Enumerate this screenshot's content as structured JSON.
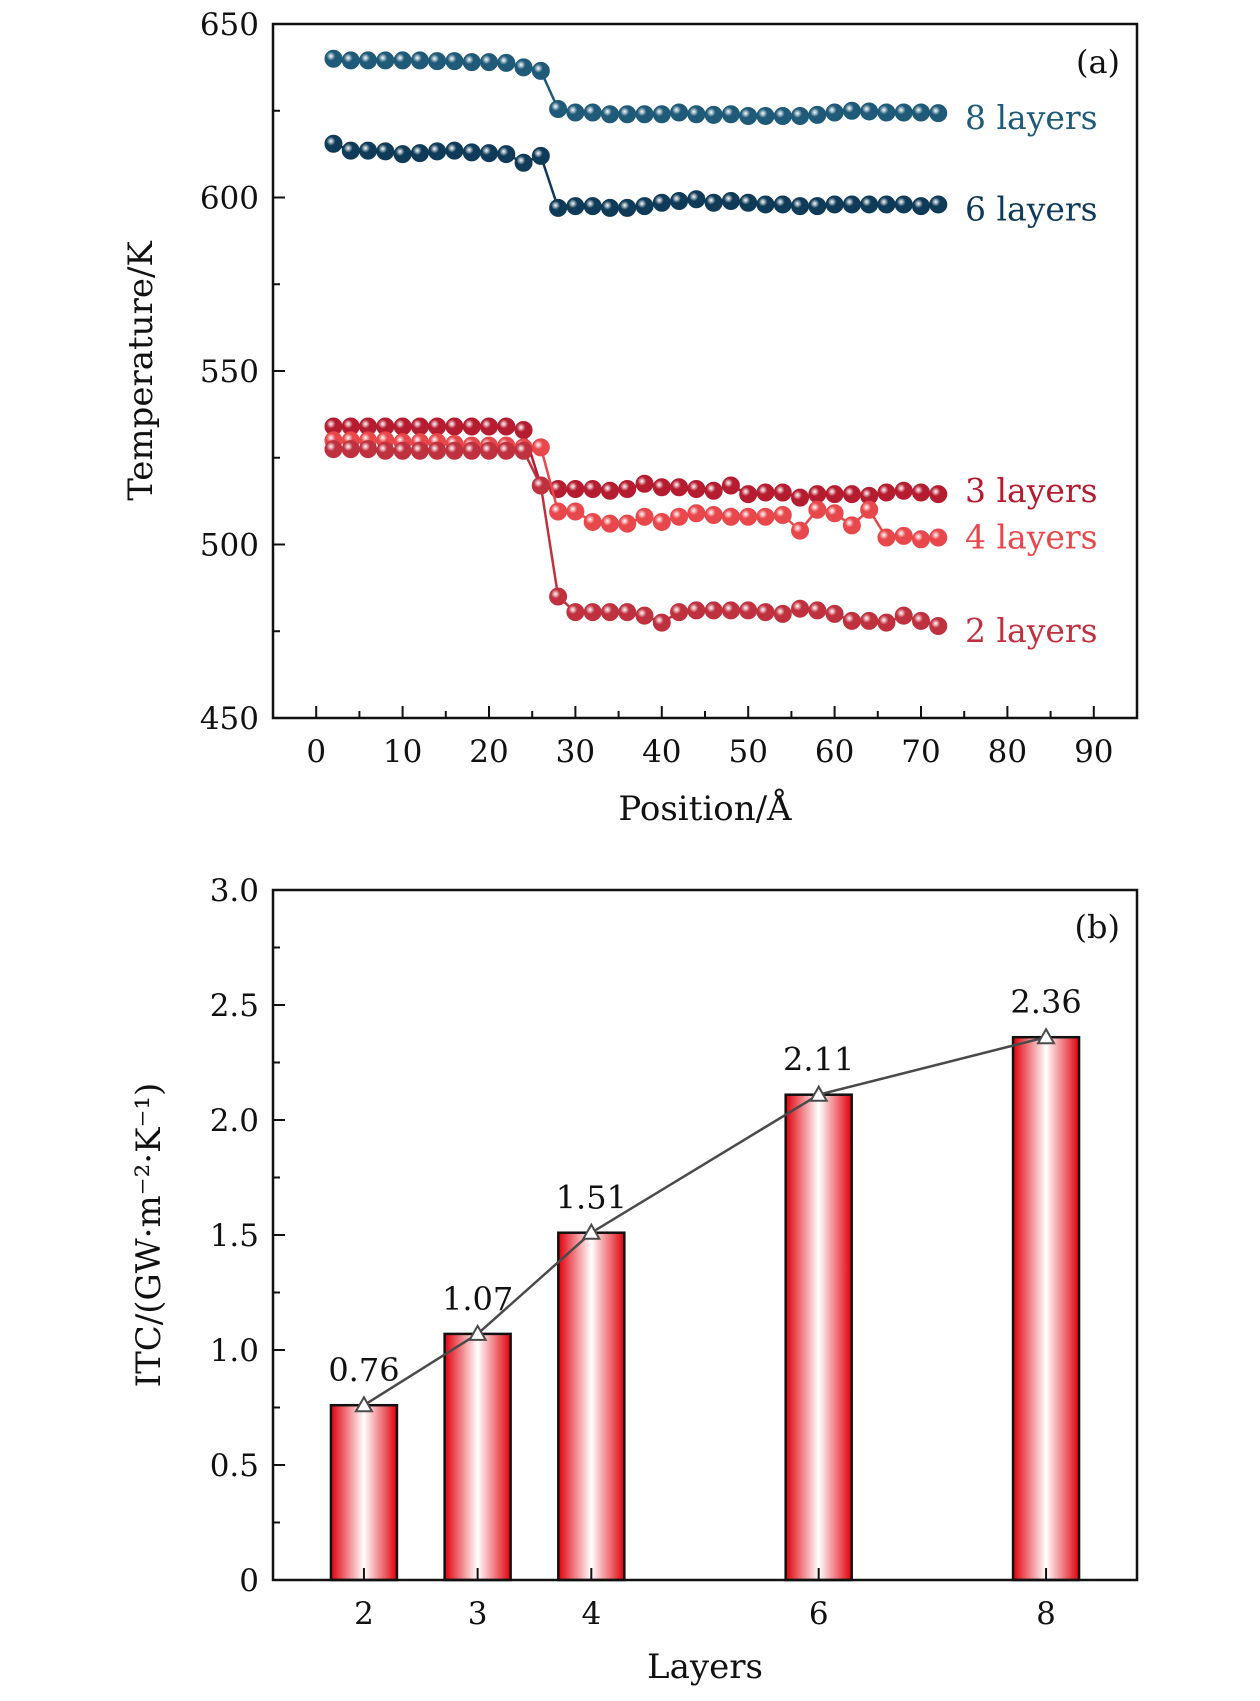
{
  "figure": {
    "colors": {
      "layers8": "#1f5a78",
      "layers6": "#0f3b58",
      "layers3": "#b51c30",
      "layers4": "#e8474b",
      "layers2": "#c0313f",
      "bar_edge": "#e0000b",
      "bar_center": "#ffffff",
      "line": "#4a4a4a"
    }
  },
  "chart_data": [
    {
      "panel": "a",
      "panel_label": "(a)",
      "type": "line",
      "xlabel": "Position/Å",
      "ylabel": "Temperature/K",
      "xlim": [
        -5,
        95
      ],
      "ylim": [
        450,
        650
      ],
      "xticks": [
        0,
        10,
        20,
        30,
        40,
        50,
        60,
        70,
        80,
        90
      ],
      "yticks": [
        450,
        500,
        550,
        600,
        650
      ],
      "x": [
        2,
        4,
        6,
        8,
        10,
        12,
        14,
        16,
        18,
        20,
        22,
        24,
        26,
        28,
        30,
        32,
        34,
        36,
        38,
        40,
        42,
        44,
        46,
        48,
        50,
        52,
        54,
        56,
        58,
        60,
        62,
        64,
        66,
        68,
        70,
        72
      ],
      "series": [
        {
          "name": "8 layers",
          "color_key": "layers8",
          "values": [
            640,
            639.5,
            639.5,
            639.5,
            639.5,
            639.5,
            639.3,
            639.3,
            639,
            639,
            638.8,
            637.5,
            636.5,
            625.5,
            624.5,
            624.5,
            624,
            624,
            624,
            624,
            624.5,
            624,
            623.8,
            624,
            623.5,
            623.5,
            623.5,
            623.5,
            623.8,
            624.5,
            625,
            624.8,
            624.5,
            624.5,
            624.5,
            624.3
          ]
        },
        {
          "name": "6 layers",
          "color_key": "layers6",
          "values": [
            615.5,
            613.5,
            613.5,
            613.3,
            612.5,
            612.8,
            613.3,
            613.5,
            613,
            612.8,
            612.5,
            610,
            612,
            597,
            597.5,
            597.5,
            597,
            597,
            597.5,
            598.5,
            599,
            599.5,
            598.5,
            599,
            598.5,
            598,
            598,
            597.5,
            597.5,
            598,
            598,
            598,
            598,
            598,
            597.5,
            598
          ]
        },
        {
          "name": "3 layers",
          "color_key": "layers3",
          "values": [
            534,
            534,
            534,
            534,
            534,
            534,
            534,
            534,
            534,
            534,
            534,
            533,
            517,
            516,
            516,
            516,
            515.5,
            516,
            517.5,
            516.5,
            516.5,
            516,
            515.5,
            517,
            514.5,
            515,
            515,
            513.5,
            514.5,
            514.5,
            514.5,
            514,
            515,
            515.5,
            515,
            514.5
          ]
        },
        {
          "name": "4 layers",
          "color_key": "layers4",
          "values": [
            530,
            530,
            530,
            530,
            529.5,
            529.5,
            529.5,
            529,
            528.5,
            528.5,
            528.5,
            528,
            528,
            509.5,
            509.5,
            506.5,
            506,
            506,
            508,
            506.5,
            508,
            509,
            508.5,
            508,
            508,
            508,
            508.5,
            504,
            510,
            509,
            505.5,
            510,
            502,
            502.5,
            501.5,
            502
          ]
        },
        {
          "name": "2 layers",
          "color_key": "layers2",
          "values": [
            527.5,
            527.5,
            527.5,
            527,
            527,
            527,
            527,
            527,
            527,
            527,
            527,
            527,
            517,
            485,
            480.5,
            480.5,
            480.5,
            480.5,
            479.5,
            477.5,
            480.5,
            481,
            481,
            481,
            481,
            480.5,
            480,
            481.5,
            481,
            480,
            478,
            478,
            477.5,
            479.5,
            478,
            476.5
          ]
        }
      ]
    },
    {
      "panel": "b",
      "panel_label": "(b)",
      "type": "bar",
      "xlabel": "Layers",
      "ylabel": "ITC/(GW·m⁻²·K⁻¹)",
      "xlim": [
        1.2,
        8.8
      ],
      "ylim": [
        0,
        3.0
      ],
      "yticks": [
        "0",
        "0.5",
        "1.0",
        "1.5",
        "2.0",
        "2.5",
        "3.0"
      ],
      "categories": [
        "2",
        "3",
        "4",
        "6",
        "8"
      ],
      "values": [
        0.76,
        1.07,
        1.51,
        2.11,
        2.36
      ],
      "data_labels": [
        "0.76",
        "1.07",
        "1.51",
        "2.11",
        "2.36"
      ],
      "overlay": "line with open triangle markers through bar tops"
    }
  ]
}
